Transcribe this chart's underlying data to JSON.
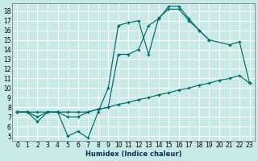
{
  "xlabel": "Humidex (Indice chaleur)",
  "xlim": [
    -0.5,
    23.5
  ],
  "ylim": [
    4.5,
    18.8
  ],
  "xticks": [
    0,
    1,
    2,
    3,
    4,
    5,
    6,
    7,
    8,
    9,
    10,
    11,
    12,
    13,
    14,
    15,
    16,
    17,
    18,
    19,
    20,
    21,
    22,
    23
  ],
  "yticks": [
    5,
    6,
    7,
    8,
    9,
    10,
    11,
    12,
    13,
    14,
    15,
    16,
    17,
    18
  ],
  "bg_color": "#c8eae6",
  "grid_color": "#ffffff",
  "line_color": "#006b6b",
  "line1_x": [
    0,
    1,
    2,
    3,
    4,
    5,
    6,
    7,
    8,
    9,
    10,
    11,
    12,
    13,
    14,
    15,
    16,
    17,
    18,
    19,
    20,
    21,
    22,
    23
  ],
  "line1_y": [
    7.5,
    7.5,
    7.5,
    7.5,
    7.5,
    7.5,
    7.5,
    7.5,
    7.8,
    8.0,
    8.3,
    8.5,
    8.8,
    9.0,
    9.3,
    9.5,
    9.8,
    10.0,
    10.3,
    10.5,
    10.8,
    11.0,
    11.3,
    10.5
  ],
  "line2_x": [
    0,
    1,
    2,
    3,
    4,
    5,
    6,
    7,
    8,
    9,
    10,
    11,
    12,
    13,
    14,
    15,
    16,
    17,
    18,
    19,
    21,
    22,
    23
  ],
  "line2_y": [
    7.5,
    7.5,
    7.0,
    7.5,
    7.5,
    7.0,
    7.0,
    7.5,
    7.8,
    8.0,
    13.5,
    13.5,
    14.0,
    16.5,
    17.2,
    18.5,
    18.5,
    17.2,
    16.0,
    15.0,
    14.5,
    14.8,
    10.5
  ],
  "line3_x": [
    0,
    1,
    2,
    3,
    4,
    5,
    6,
    7,
    8,
    9,
    10,
    11,
    12,
    13,
    14,
    15,
    16,
    17,
    18,
    19
  ],
  "line3_y": [
    7.5,
    7.5,
    6.5,
    7.5,
    7.5,
    5.0,
    5.5,
    4.8,
    7.5,
    10.0,
    16.5,
    16.8,
    17.0,
    13.5,
    17.3,
    18.2,
    18.2,
    17.0,
    16.0,
    15.0
  ]
}
